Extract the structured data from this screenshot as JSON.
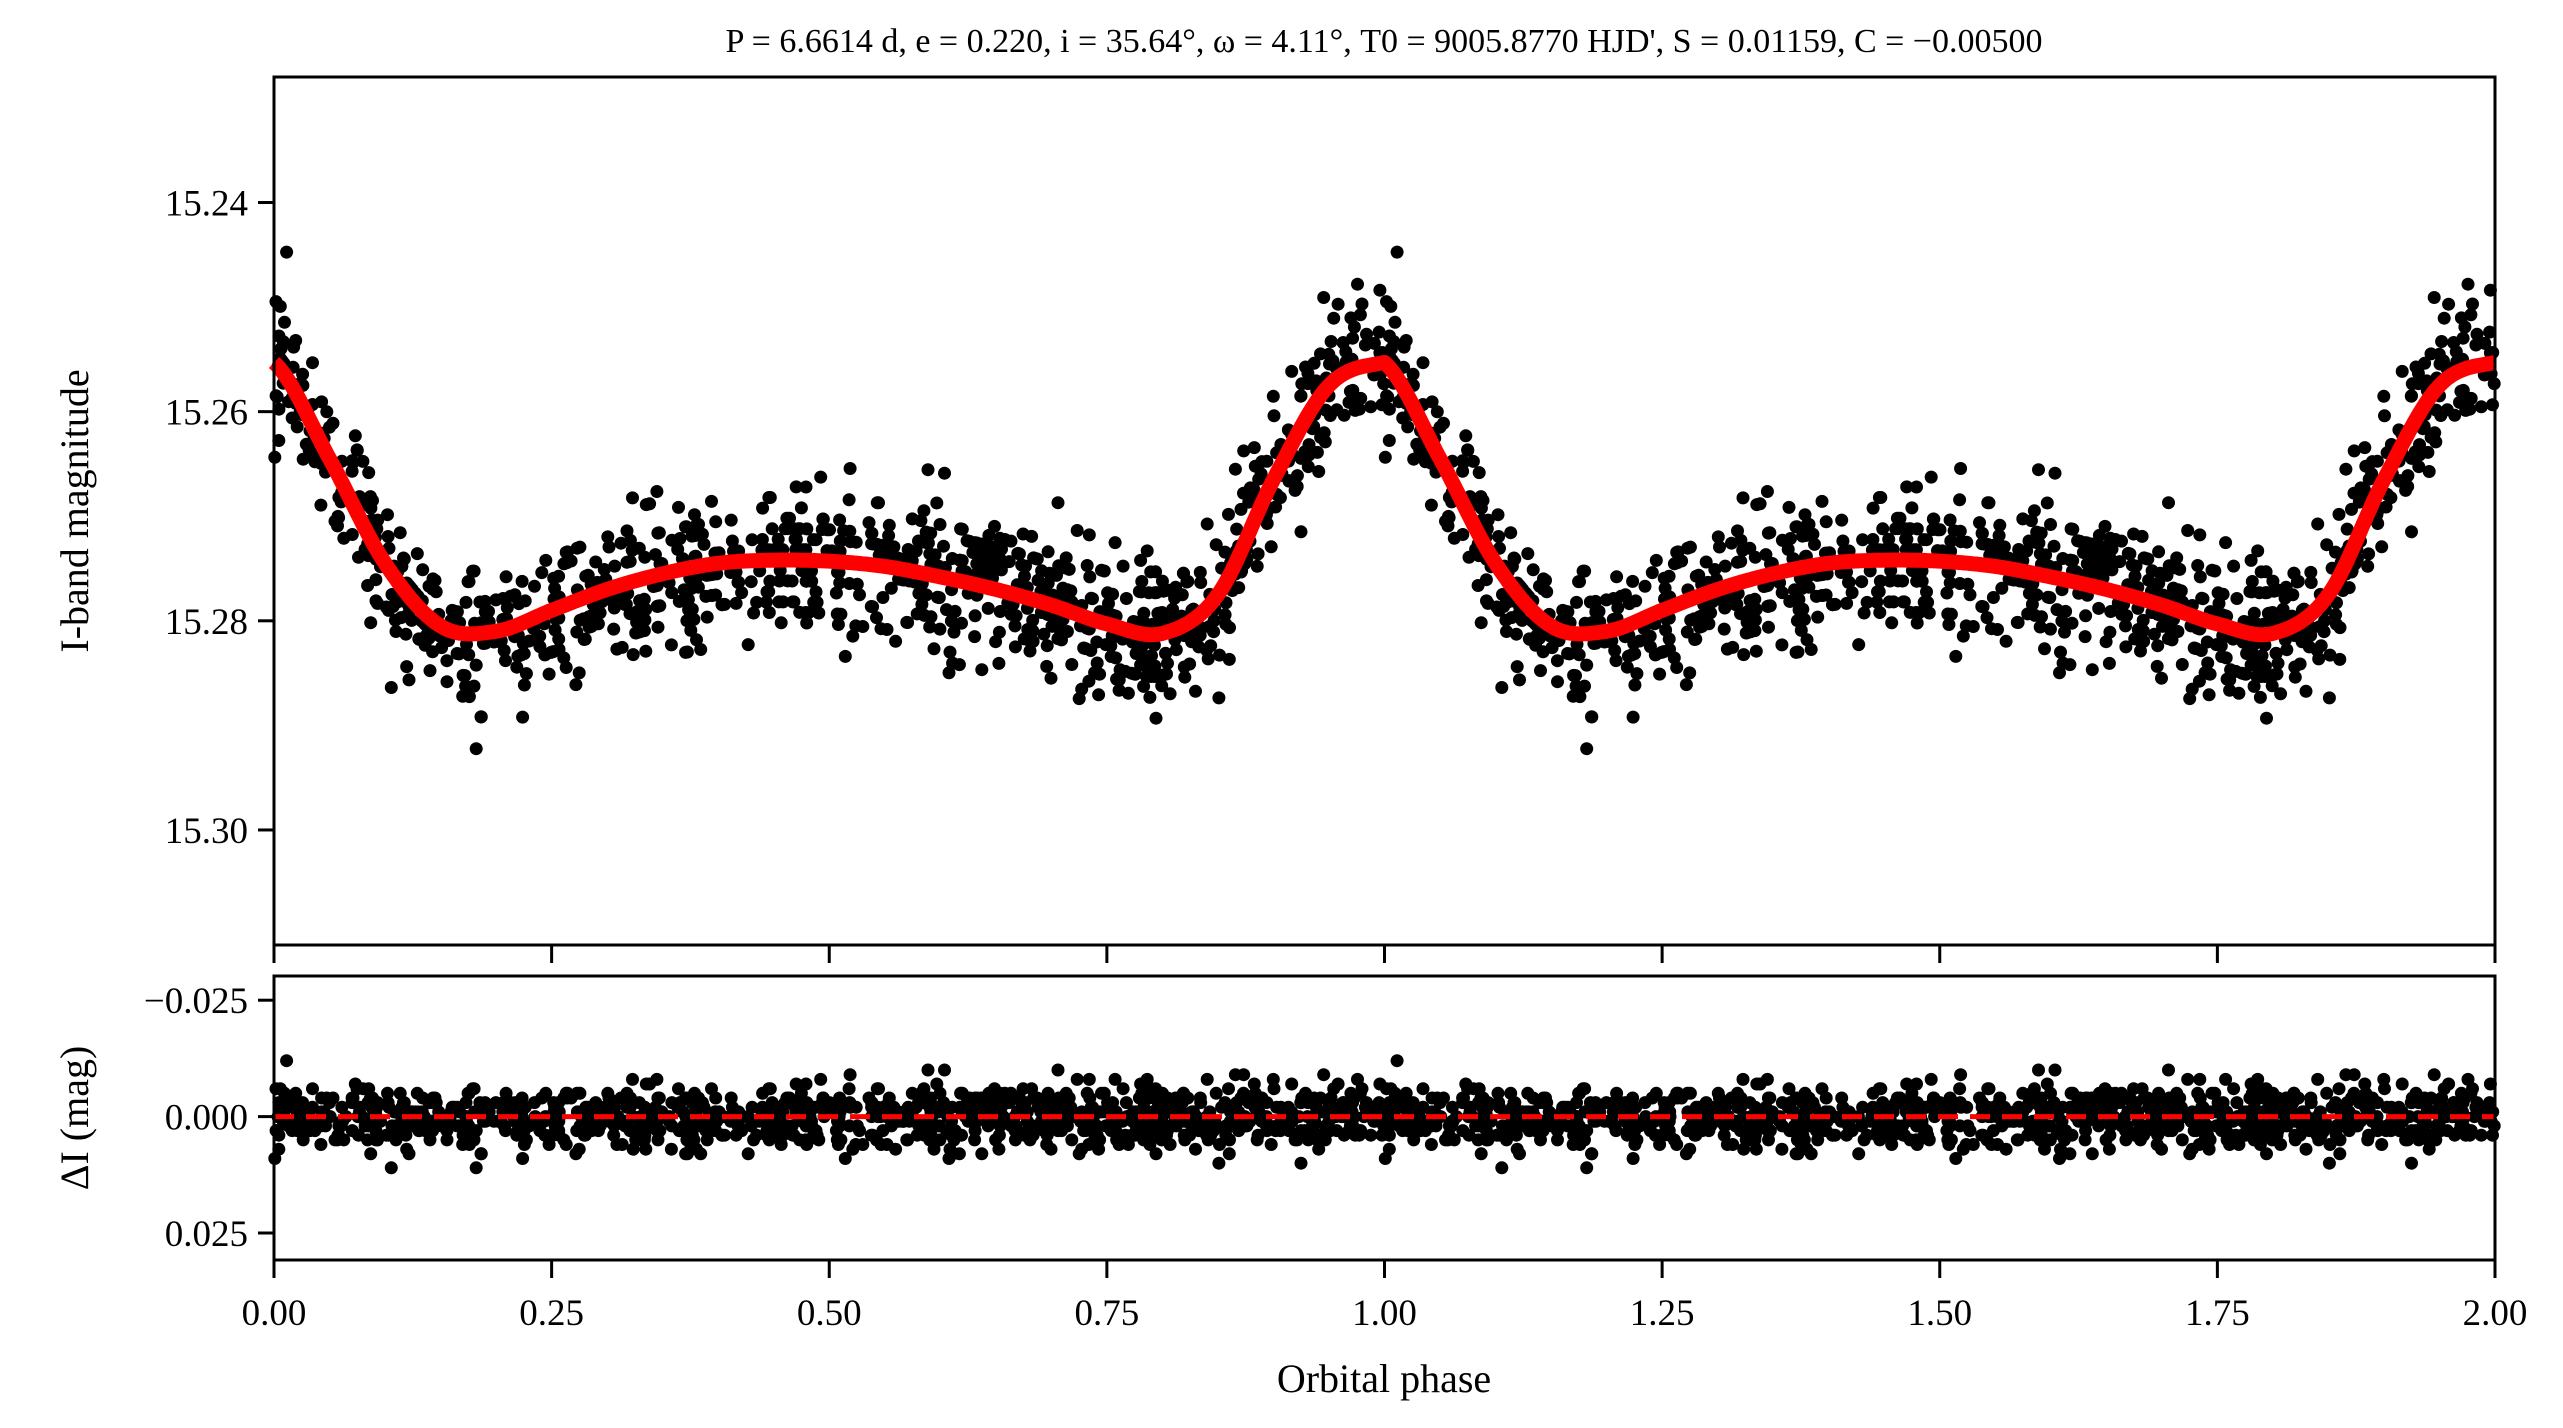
{
  "chart_data": [
    {
      "type": "scatter",
      "panel": "light-curve",
      "title": "P = 6.6614 d, e = 0.220, i = 35.64°, ω = 4.11°, T0 = 9005.8770 HJD', S = 0.01159, C = −0.00500",
      "xlabel": "Orbital phase",
      "ylabel": "I-band magnitude",
      "xlim": [
        0,
        2
      ],
      "ylim": [
        15.311,
        15.228
      ],
      "y_inverted": true,
      "xticks": [
        "0.00",
        "0.25",
        "0.50",
        "0.75",
        "1.00",
        "1.25",
        "1.50",
        "1.75",
        "2.00"
      ],
      "yticks": [
        "15.24",
        "15.26",
        "15.28",
        "15.30"
      ],
      "ytick_values": [
        15.24,
        15.26,
        15.28,
        15.3
      ],
      "model": {
        "color": "#ff0000",
        "phase": [
          0.0,
          0.05,
          0.1,
          0.15,
          0.2,
          0.25,
          0.3,
          0.35,
          0.4,
          0.45,
          0.5,
          0.55,
          0.6,
          0.65,
          0.7,
          0.75,
          0.8,
          0.85,
          0.9,
          0.95,
          1.0
        ],
        "mag": [
          15.2553,
          15.2645,
          15.2745,
          15.2805,
          15.281,
          15.279,
          15.277,
          15.2755,
          15.2745,
          15.2742,
          15.2743,
          15.2748,
          15.2758,
          15.277,
          15.2785,
          15.2803,
          15.2812,
          15.2775,
          15.2665,
          15.2575,
          15.2553
        ]
      },
      "observations": {
        "color": "#000000",
        "points_per_cycle": 1100,
        "scatter_sigma_mag": 0.0058
      }
    },
    {
      "type": "scatter",
      "panel": "residuals",
      "ylabel": "ΔI (mag)",
      "xlabel": "Orbital phase",
      "xlim": [
        0,
        2
      ],
      "ylim": [
        0.0308,
        -0.0302
      ],
      "y_inverted": true,
      "yticks": [
        "−0.025",
        "0.000",
        "0.025"
      ],
      "ytick_values": [
        -0.025,
        0.0,
        0.025
      ],
      "zero_line": {
        "value": 0.0,
        "color": "#ff0000",
        "style": "dashed"
      }
    }
  ]
}
